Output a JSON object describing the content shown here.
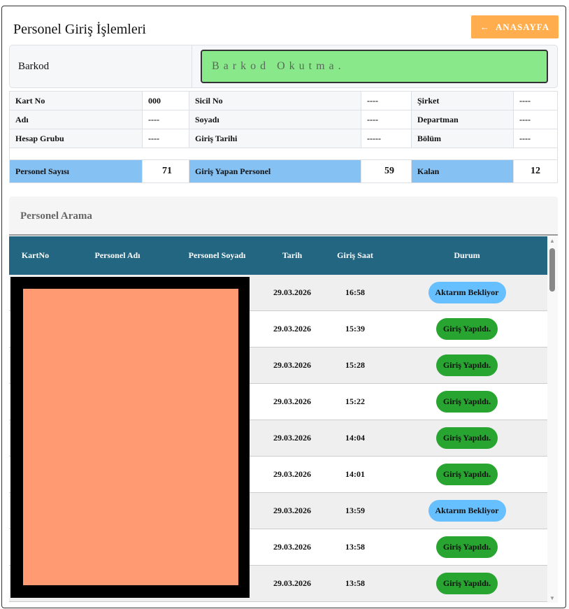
{
  "header": {
    "title": "Personel Giriş İşlemleri",
    "home_button": "ANASAYFA",
    "home_icon": "arrow-left-icon"
  },
  "barcode": {
    "label": "Barkod",
    "placeholder": "Barkod Okutma."
  },
  "info": {
    "rows": [
      [
        {
          "k": "Kart No",
          "v": "000"
        },
        {
          "k": "Sicil No",
          "v": "----"
        },
        {
          "k": "Şirket",
          "v": "----"
        }
      ],
      [
        {
          "k": "Adı",
          "v": "----"
        },
        {
          "k": "Soyadı",
          "v": "----"
        },
        {
          "k": "Departman",
          "v": "----"
        }
      ],
      [
        {
          "k": "Hesap Grubu",
          "v": "----"
        },
        {
          "k": "Giriş Tarihi",
          "v": "-----"
        },
        {
          "k": "Bölüm",
          "v": "----"
        }
      ]
    ],
    "stats": [
      {
        "k": "Personel Sayısı",
        "v": "71"
      },
      {
        "k": "Giriş Yapan Personel",
        "v": "59"
      },
      {
        "k": "Kalan",
        "v": "12"
      }
    ]
  },
  "search": {
    "title": "Personel Arama"
  },
  "table": {
    "columns": [
      "KartNo",
      "Personel Adı",
      "Personel Soyadı",
      "Tarih",
      "Giriş Saat",
      "Durum"
    ],
    "rows": [
      {
        "date": "29.03.2026",
        "time": "16:58",
        "status": "Aktarım Bekliyor"
      },
      {
        "date": "29.03.2026",
        "time": "15:39",
        "status": "Giriş Yapıldı."
      },
      {
        "date": "29.03.2026",
        "time": "15:28",
        "status": "Giriş Yapıldı."
      },
      {
        "date": "29.03.2026",
        "time": "15:22",
        "status": "Giriş Yapıldı."
      },
      {
        "date": "29.03.2026",
        "time": "14:04",
        "status": "Giriş Yapıldı."
      },
      {
        "date": "29.03.2026",
        "time": "14:01",
        "status": "Giriş Yapıldı."
      },
      {
        "date": "29.03.2026",
        "time": "13:59",
        "status": "Aktarım Bekliyor"
      },
      {
        "date": "29.03.2026",
        "time": "13:58",
        "status": "Giriş Yapıldı."
      },
      {
        "date": "29.03.2026",
        "time": "13:58",
        "status": "Giriş Yapıldı."
      }
    ]
  },
  "colors": {
    "accent": "#ffad4d",
    "header": "#236682",
    "pending": "#66bfff",
    "done": "#28a530",
    "barcode_bg": "#88e88a",
    "stat_bg": "#86c1f3"
  }
}
